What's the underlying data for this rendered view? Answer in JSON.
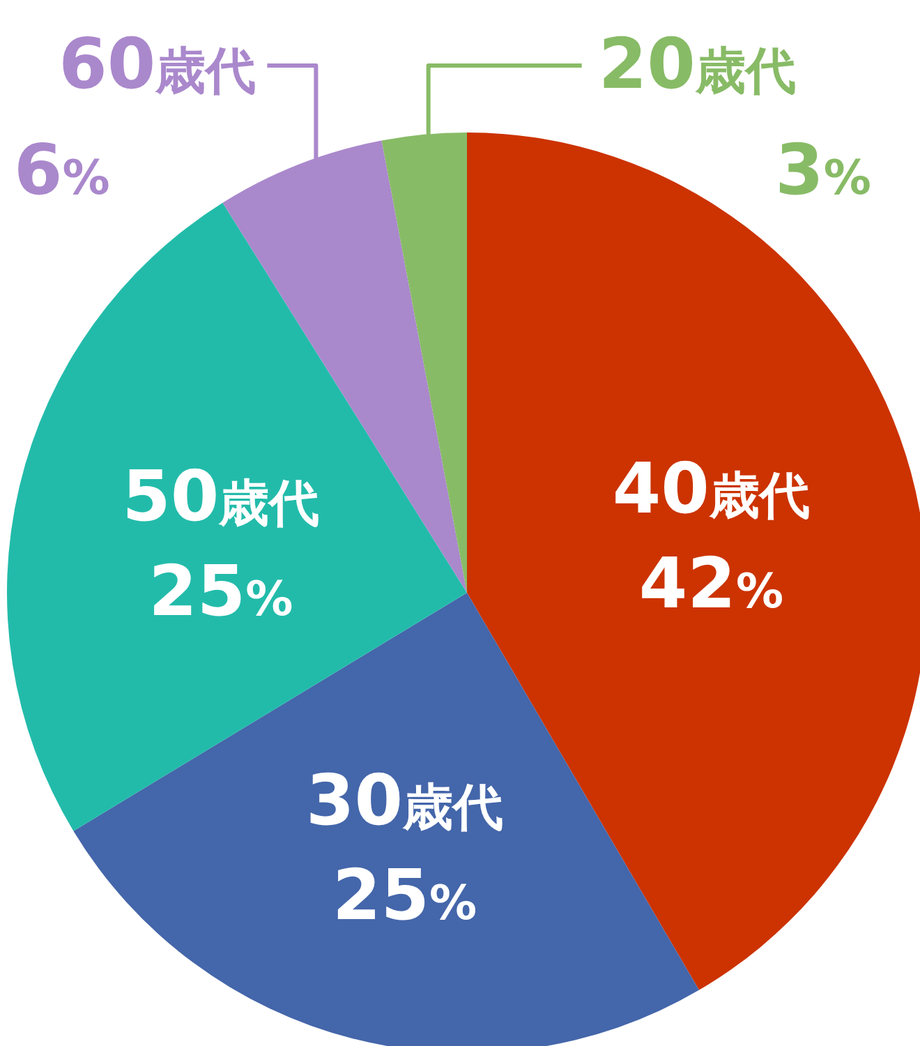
{
  "chart_data": {
    "type": "pie",
    "categories": [
      "40歳代",
      "30歳代",
      "50歳代",
      "60歳代",
      "20歳代"
    ],
    "values": [
      42,
      25,
      25,
      6,
      3
    ],
    "colors": [
      "#cc3300",
      "#4466aa",
      "#22bbaa",
      "#aa88cc",
      "#88bb66"
    ],
    "value_labels": [
      "42%",
      "25%",
      "25%",
      "6%",
      "3%"
    ]
  }
}
